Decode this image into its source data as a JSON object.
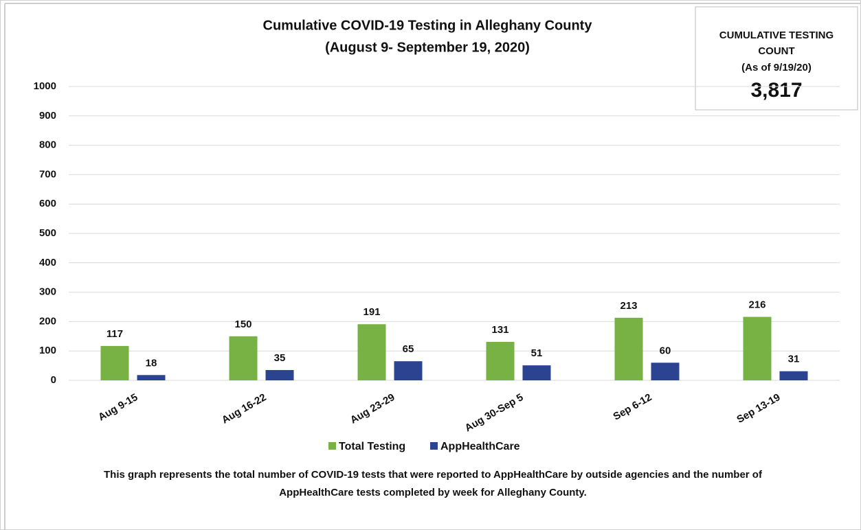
{
  "chart_data": {
    "type": "bar",
    "title": "Cumulative COVID-19 Testing in Alleghany County",
    "subtitle": "(August 9- September 19, 2020)",
    "categories": [
      "Aug 9-15",
      "Aug 16-22",
      "Aug 23-29",
      "Aug 30-Sep 5",
      "Sep 6-12",
      "Sep 13-19"
    ],
    "series": [
      {
        "name": "Total Testing",
        "color": "#79b244",
        "values": [
          117,
          150,
          191,
          131,
          213,
          216
        ]
      },
      {
        "name": "AppHealthCare",
        "color": "#2b4391",
        "values": [
          18,
          35,
          65,
          51,
          60,
          31
        ]
      }
    ],
    "ylim": [
      0,
      1000
    ],
    "yticks": [
      0,
      100,
      200,
      300,
      400,
      500,
      600,
      700,
      800,
      900,
      1000
    ],
    "grid": true,
    "legend": "bottom",
    "callout": {
      "lines": [
        "CUMULATIVE TESTING",
        "COUNT",
        "(As of 9/19/20)"
      ],
      "value": "3,817"
    },
    "note": [
      "This graph represents the total number of COVID-19 tests that were reported to AppHealthCare by outside agencies and the number of",
      "AppHealthCare tests completed by week for Alleghany County."
    ]
  }
}
